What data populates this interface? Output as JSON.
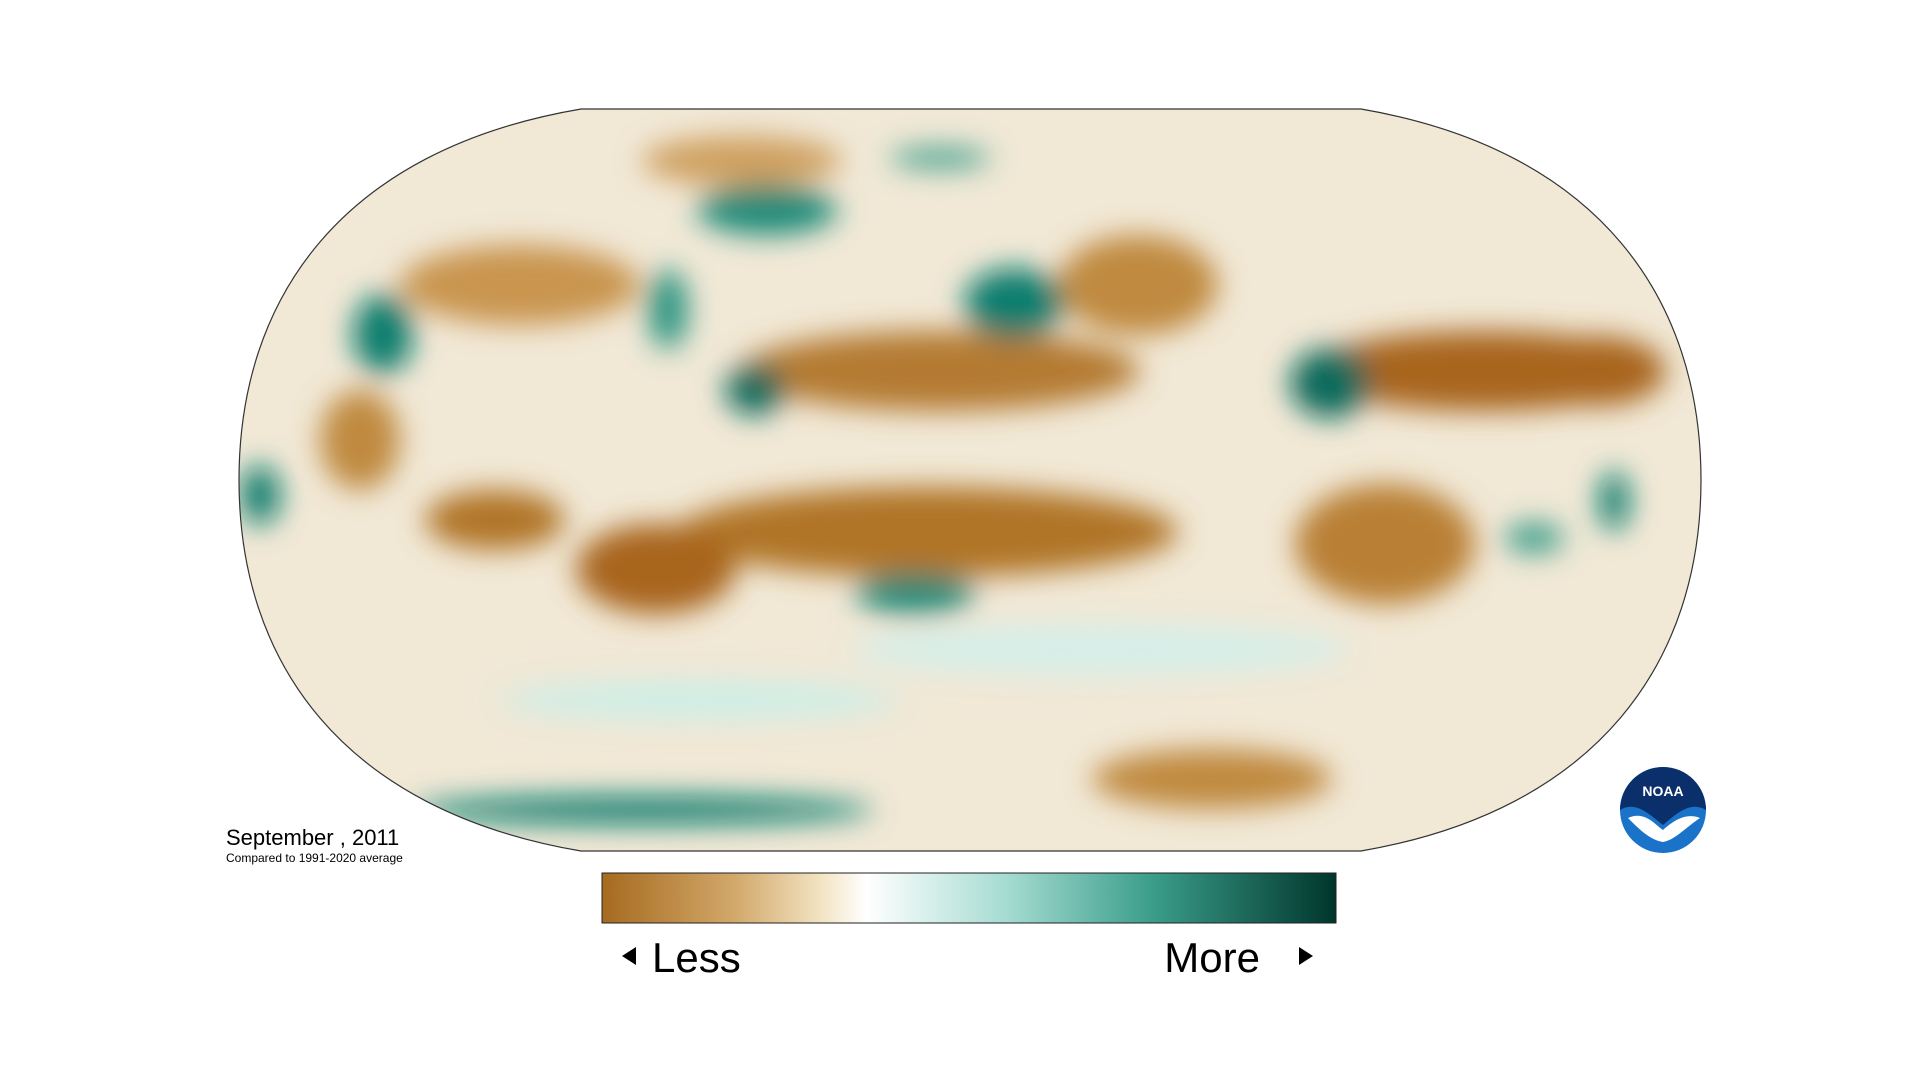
{
  "map": {
    "title": "September , 2011",
    "subtitle": "Compared to 1991-2020 average",
    "legend": {
      "low_label": "Less",
      "high_label": "More"
    }
  },
  "logo": {
    "text": "NOAA"
  }
}
